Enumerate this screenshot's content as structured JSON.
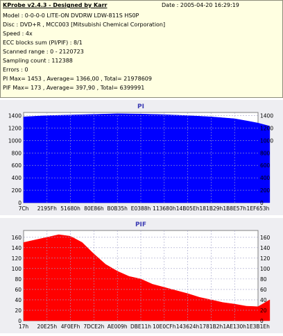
{
  "info": {
    "app_title": "KProbe v2.4.3 - Designed by Karr",
    "date": "Date : 2005-04-20 16:29:19",
    "model": "Model : 0-0-0-0 LITE-ON DVDRW LDW-811S   HS0P",
    "disc": "Disc : DVD+R , MCC003 [Mitsubishi Chemical Corporation]",
    "speed": "Speed : 4x",
    "ecc": "ECC blocks sum (PI/PIF) : 8/1",
    "scanned": "Scanned range : 0 - 2120723",
    "sampling": "Sampling count : 112388",
    "errors": "Errors : 0",
    "pi_stats": "PI Max= 1453 , Average= 1366,00 , Total= 21978609",
    "pif_stats": "PIF Max= 173 , Average= 397,90 , Total= 6399991"
  },
  "colors": {
    "info_bg": "#ffffe1",
    "pi_series": "#0000ff",
    "pif_series": "#ff0000",
    "chart_bg": "#ffffff",
    "panel_bg": "#eeeef2",
    "title_color": "#3c3cb4"
  },
  "chart_data": [
    {
      "type": "area",
      "title": "PI",
      "categories": [
        "7Ch",
        "2195Fh",
        "51680h",
        "80E86h",
        "B0B35h",
        "E0388h",
        "113680h",
        "14B05Eh",
        "181B29h",
        "1B8E57h",
        "1EF653h"
      ],
      "ylim": [
        0,
        1450
      ],
      "yticks": [
        0,
        200,
        400,
        600,
        800,
        1000,
        1200,
        1400
      ],
      "grid": true,
      "series": [
        {
          "x": [
            0,
            0.5,
            1,
            2,
            3,
            4,
            5,
            6,
            7,
            8,
            9,
            9.3,
            9.6,
            10,
            10.5
          ],
          "values": [
            1380,
            1390,
            1400,
            1410,
            1420,
            1430,
            1425,
            1415,
            1400,
            1380,
            1350,
            1330,
            1310,
            1280,
            1230
          ]
        }
      ]
    },
    {
      "type": "area",
      "title": "PIF",
      "categories": [
        "17h",
        "20E25h",
        "4F0EFh",
        "7DCE2h",
        "AE009h",
        "DBE11h",
        "10E0CFh",
        "143624h",
        "1781B2h",
        "1AE130h",
        "1E3B1Eh"
      ],
      "ylim": [
        0,
        173
      ],
      "yticks": [
        0,
        20,
        40,
        60,
        80,
        100,
        120,
        140,
        160
      ],
      "grid": true,
      "series": [
        {
          "x": [
            0,
            0.5,
            1,
            1.5,
            2,
            2.5,
            3,
            3.5,
            4,
            4.5,
            5,
            5.5,
            6,
            6.5,
            7,
            7.5,
            8,
            8.5,
            9,
            9.5,
            10,
            10.5
          ],
          "values": [
            150,
            155,
            160,
            165,
            162,
            150,
            128,
            108,
            95,
            85,
            80,
            70,
            64,
            58,
            52,
            45,
            40,
            35,
            32,
            28,
            27,
            40
          ]
        }
      ]
    }
  ]
}
